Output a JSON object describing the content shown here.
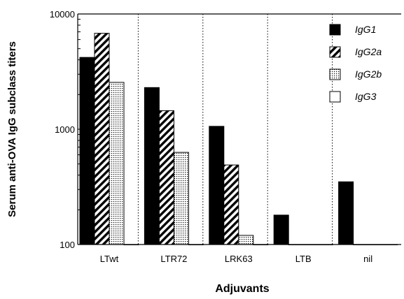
{
  "chart_data": {
    "type": "bar",
    "scale": "log",
    "ylim": [
      100,
      10000
    ],
    "yticks": [
      "100",
      "1000",
      "10000"
    ],
    "ylabel": "Serum anti-OVA IgG subclass titers",
    "xlabel": "Adjuvants",
    "categories": [
      "LTwt",
      "LTR72",
      "LRK63",
      "LTB",
      "nil"
    ],
    "legend_position": "top-right",
    "grid": false,
    "series": [
      {
        "name": "IgG1",
        "pattern": "solid",
        "values": [
          4200,
          2300,
          1060,
          180,
          350
        ]
      },
      {
        "name": "IgG2a",
        "pattern": "hatched",
        "values": [
          6800,
          1450,
          490,
          100,
          100
        ]
      },
      {
        "name": "IgG2b",
        "pattern": "dotted",
        "values": [
          2550,
          630,
          120,
          100,
          100
        ]
      },
      {
        "name": "IgG3",
        "pattern": "open",
        "values": [
          100,
          100,
          100,
          100,
          100
        ]
      }
    ]
  }
}
